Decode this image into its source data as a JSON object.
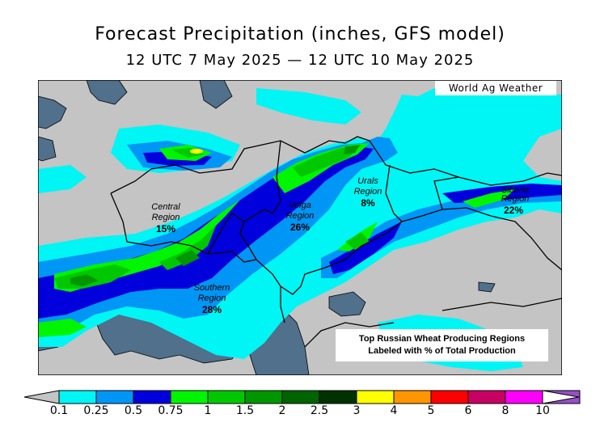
{
  "title": "Forecast Precipitation (inches, GFS model)",
  "subtitle": "12 UTC 7 May 2025 — 12 UTC 10 May 2025",
  "credit": "World Ag Weather",
  "note": {
    "line1": "Top Russian Wheat Producing Regions",
    "line2": "Labeled with % of Total Production"
  },
  "regions": [
    {
      "name1": "Central",
      "name2": "Region",
      "pct": "15%"
    },
    {
      "name1": "Volga",
      "name2": "Region",
      "pct": "26%"
    },
    {
      "name1": "Urals",
      "name2": "Region",
      "pct": "8%"
    },
    {
      "name1": "Siberia",
      "name2": "Region",
      "pct": "22%"
    },
    {
      "name1": "Southern",
      "name2": "Region",
      "pct": "28%"
    }
  ],
  "legend": {
    "ticks": [
      "0.1",
      "0.25",
      "0.5",
      "0.75",
      "1",
      "1.5",
      "2",
      "2.5",
      "3",
      "4",
      "5",
      "6",
      "8",
      "10"
    ],
    "colors": [
      "#00f5f5",
      "#0096f5",
      "#0000dc",
      "#00f500",
      "#00c800",
      "#009600",
      "#006400",
      "#003200",
      "#ffff00",
      "#ff9600",
      "#ff0000",
      "#c80064",
      "#ff00ff",
      "#9650c8"
    ]
  }
}
